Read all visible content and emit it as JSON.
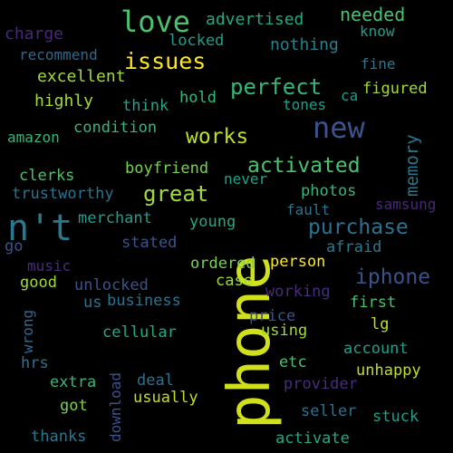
{
  "words": [
    {
      "text": "phone",
      "color": "#d0e11c",
      "rot": 1
    },
    {
      "text": "n't",
      "color": "#2a788e",
      "rot": 0
    },
    {
      "text": "new",
      "color": "#3b528b",
      "rot": 0
    },
    {
      "text": "love",
      "color": "#4ac16d",
      "rot": 0
    },
    {
      "text": "issues",
      "color": "#fde725",
      "rot": 0
    },
    {
      "text": "perfect",
      "color": "#35b779",
      "rot": 0
    },
    {
      "text": "works",
      "color": "#bddf26",
      "rot": 0
    },
    {
      "text": "activated",
      "color": "#4ac16d",
      "rot": 0
    },
    {
      "text": "great",
      "color": "#a0da39",
      "rot": 0
    },
    {
      "text": "purchase",
      "color": "#2c728e",
      "rot": 0
    },
    {
      "text": "iphone",
      "color": "#3b528b",
      "rot": 0
    },
    {
      "text": "needed",
      "color": "#4ac16d",
      "rot": 0
    },
    {
      "text": "advertised",
      "color": "#22a884",
      "rot": 0
    },
    {
      "text": "locked",
      "color": "#1f9e89",
      "rot": 0
    },
    {
      "text": "nothing",
      "color": "#26828e",
      "rot": 0
    },
    {
      "text": "know",
      "color": "#1f9e89",
      "rot": 0
    },
    {
      "text": "charge",
      "color": "#482878",
      "rot": 0
    },
    {
      "text": "recommend",
      "color": "#31688e",
      "rot": 0
    },
    {
      "text": "excellent",
      "color": "#a0da39",
      "rot": 0
    },
    {
      "text": "fine",
      "color": "#2a788e",
      "rot": 0
    },
    {
      "text": "highly",
      "color": "#a0da39",
      "rot": 0
    },
    {
      "text": "think",
      "color": "#20a386",
      "rot": 0
    },
    {
      "text": "hold",
      "color": "#35b779",
      "rot": 0
    },
    {
      "text": "tones",
      "color": "#1f9e89",
      "rot": 0
    },
    {
      "text": "ca",
      "color": "#1f9e89",
      "rot": 0
    },
    {
      "text": "figured",
      "color": "#a0da39",
      "rot": 0
    },
    {
      "text": "amazon",
      "color": "#35b779",
      "rot": 0
    },
    {
      "text": "condition",
      "color": "#35b779",
      "rot": 0
    },
    {
      "text": "memory",
      "color": "#2a788e",
      "rot": 1
    },
    {
      "text": "clerks",
      "color": "#4ac16d",
      "rot": 0
    },
    {
      "text": "boyfriend",
      "color": "#7ad151",
      "rot": 0
    },
    {
      "text": "never",
      "color": "#20a386",
      "rot": 0
    },
    {
      "text": "trustworthy",
      "color": "#2c728e",
      "rot": 0
    },
    {
      "text": "photos",
      "color": "#35b779",
      "rot": 0
    },
    {
      "text": "samsung",
      "color": "#482878",
      "rot": 0
    },
    {
      "text": "fault",
      "color": "#2c728e",
      "rot": 0
    },
    {
      "text": "merchant",
      "color": "#1f9e89",
      "rot": 0
    },
    {
      "text": "young",
      "color": "#22a884",
      "rot": 0
    },
    {
      "text": "go",
      "color": "#3b528b",
      "rot": 0
    },
    {
      "text": "stated",
      "color": "#3b528b",
      "rot": 0
    },
    {
      "text": "afraid",
      "color": "#2a788e",
      "rot": 0
    },
    {
      "text": "music",
      "color": "#472d7b",
      "rot": 0
    },
    {
      "text": "ordered",
      "color": "#7ad151",
      "rot": 0
    },
    {
      "text": "person",
      "color": "#fde725",
      "rot": 0
    },
    {
      "text": "good",
      "color": "#a0da39",
      "rot": 0
    },
    {
      "text": "unlocked",
      "color": "#3b528b",
      "rot": 0
    },
    {
      "text": "case",
      "color": "#a0da39",
      "rot": 0
    },
    {
      "text": "working",
      "color": "#472d7b",
      "rot": 0
    },
    {
      "text": "wrong",
      "color": "#31688e",
      "rot": 1
    },
    {
      "text": "us",
      "color": "#2c728e",
      "rot": 0
    },
    {
      "text": "business",
      "color": "#2c728e",
      "rot": 0
    },
    {
      "text": "first",
      "color": "#4ac16d",
      "rot": 0
    },
    {
      "text": "price",
      "color": "#3b528b",
      "rot": 0
    },
    {
      "text": "cellular",
      "color": "#22a884",
      "rot": 0
    },
    {
      "text": "using",
      "color": "#a0da39",
      "rot": 0
    },
    {
      "text": "lg",
      "color": "#bddf26",
      "rot": 0
    },
    {
      "text": "account",
      "color": "#1f9e89",
      "rot": 0
    },
    {
      "text": "hrs",
      "color": "#2c728e",
      "rot": 0
    },
    {
      "text": "download",
      "color": "#3b528b",
      "rot": 1
    },
    {
      "text": "etc",
      "color": "#4ac16d",
      "rot": 0
    },
    {
      "text": "unhappy",
      "color": "#bddf26",
      "rot": 0
    },
    {
      "text": "extra",
      "color": "#35b779",
      "rot": 0
    },
    {
      "text": "deal",
      "color": "#2c728e",
      "rot": 0
    },
    {
      "text": "provider",
      "color": "#472d7b",
      "rot": 0
    },
    {
      "text": "usually",
      "color": "#bddf26",
      "rot": 0
    },
    {
      "text": "got",
      "color": "#7ad151",
      "rot": 0
    },
    {
      "text": "seller",
      "color": "#2c728e",
      "rot": 0
    },
    {
      "text": "stuck",
      "color": "#1f9e89",
      "rot": 0
    },
    {
      "text": "thanks",
      "color": "#2a788e",
      "rot": 0
    },
    {
      "text": "activate",
      "color": "#22a884",
      "rot": 0
    }
  ]
}
